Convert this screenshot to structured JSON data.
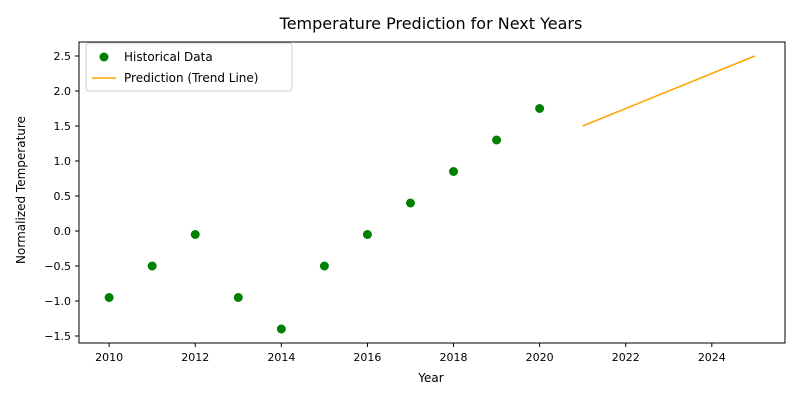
{
  "chart_data": {
    "type": "scatter",
    "title": "Temperature Prediction for Next Years",
    "xlabel": "Year",
    "ylabel": "Normalized Temperature",
    "xlim": [
      2009.3,
      2025.7
    ],
    "ylim": [
      -1.6,
      2.7
    ],
    "xticks": [
      2010,
      2012,
      2014,
      2016,
      2018,
      2020,
      2022,
      2024
    ],
    "yticks": [
      -1.5,
      -1.0,
      -0.5,
      0.0,
      0.5,
      1.0,
      1.5,
      2.0,
      2.5
    ],
    "grid": false,
    "legend_position": "top-left",
    "series": [
      {
        "name": "Historical Data",
        "kind": "scatter",
        "color": "#008000",
        "x": [
          2010,
          2011,
          2012,
          2013,
          2014,
          2015,
          2016,
          2017,
          2018,
          2019,
          2020
        ],
        "y": [
          -0.95,
          -0.5,
          -0.05,
          -0.95,
          -1.4,
          -0.5,
          -0.05,
          0.4,
          0.85,
          1.3,
          1.75
        ]
      },
      {
        "name": "Prediction (Trend Line)",
        "kind": "line",
        "color": "#FFA500",
        "x": [
          2021,
          2025
        ],
        "y": [
          1.5,
          2.5
        ]
      }
    ]
  }
}
